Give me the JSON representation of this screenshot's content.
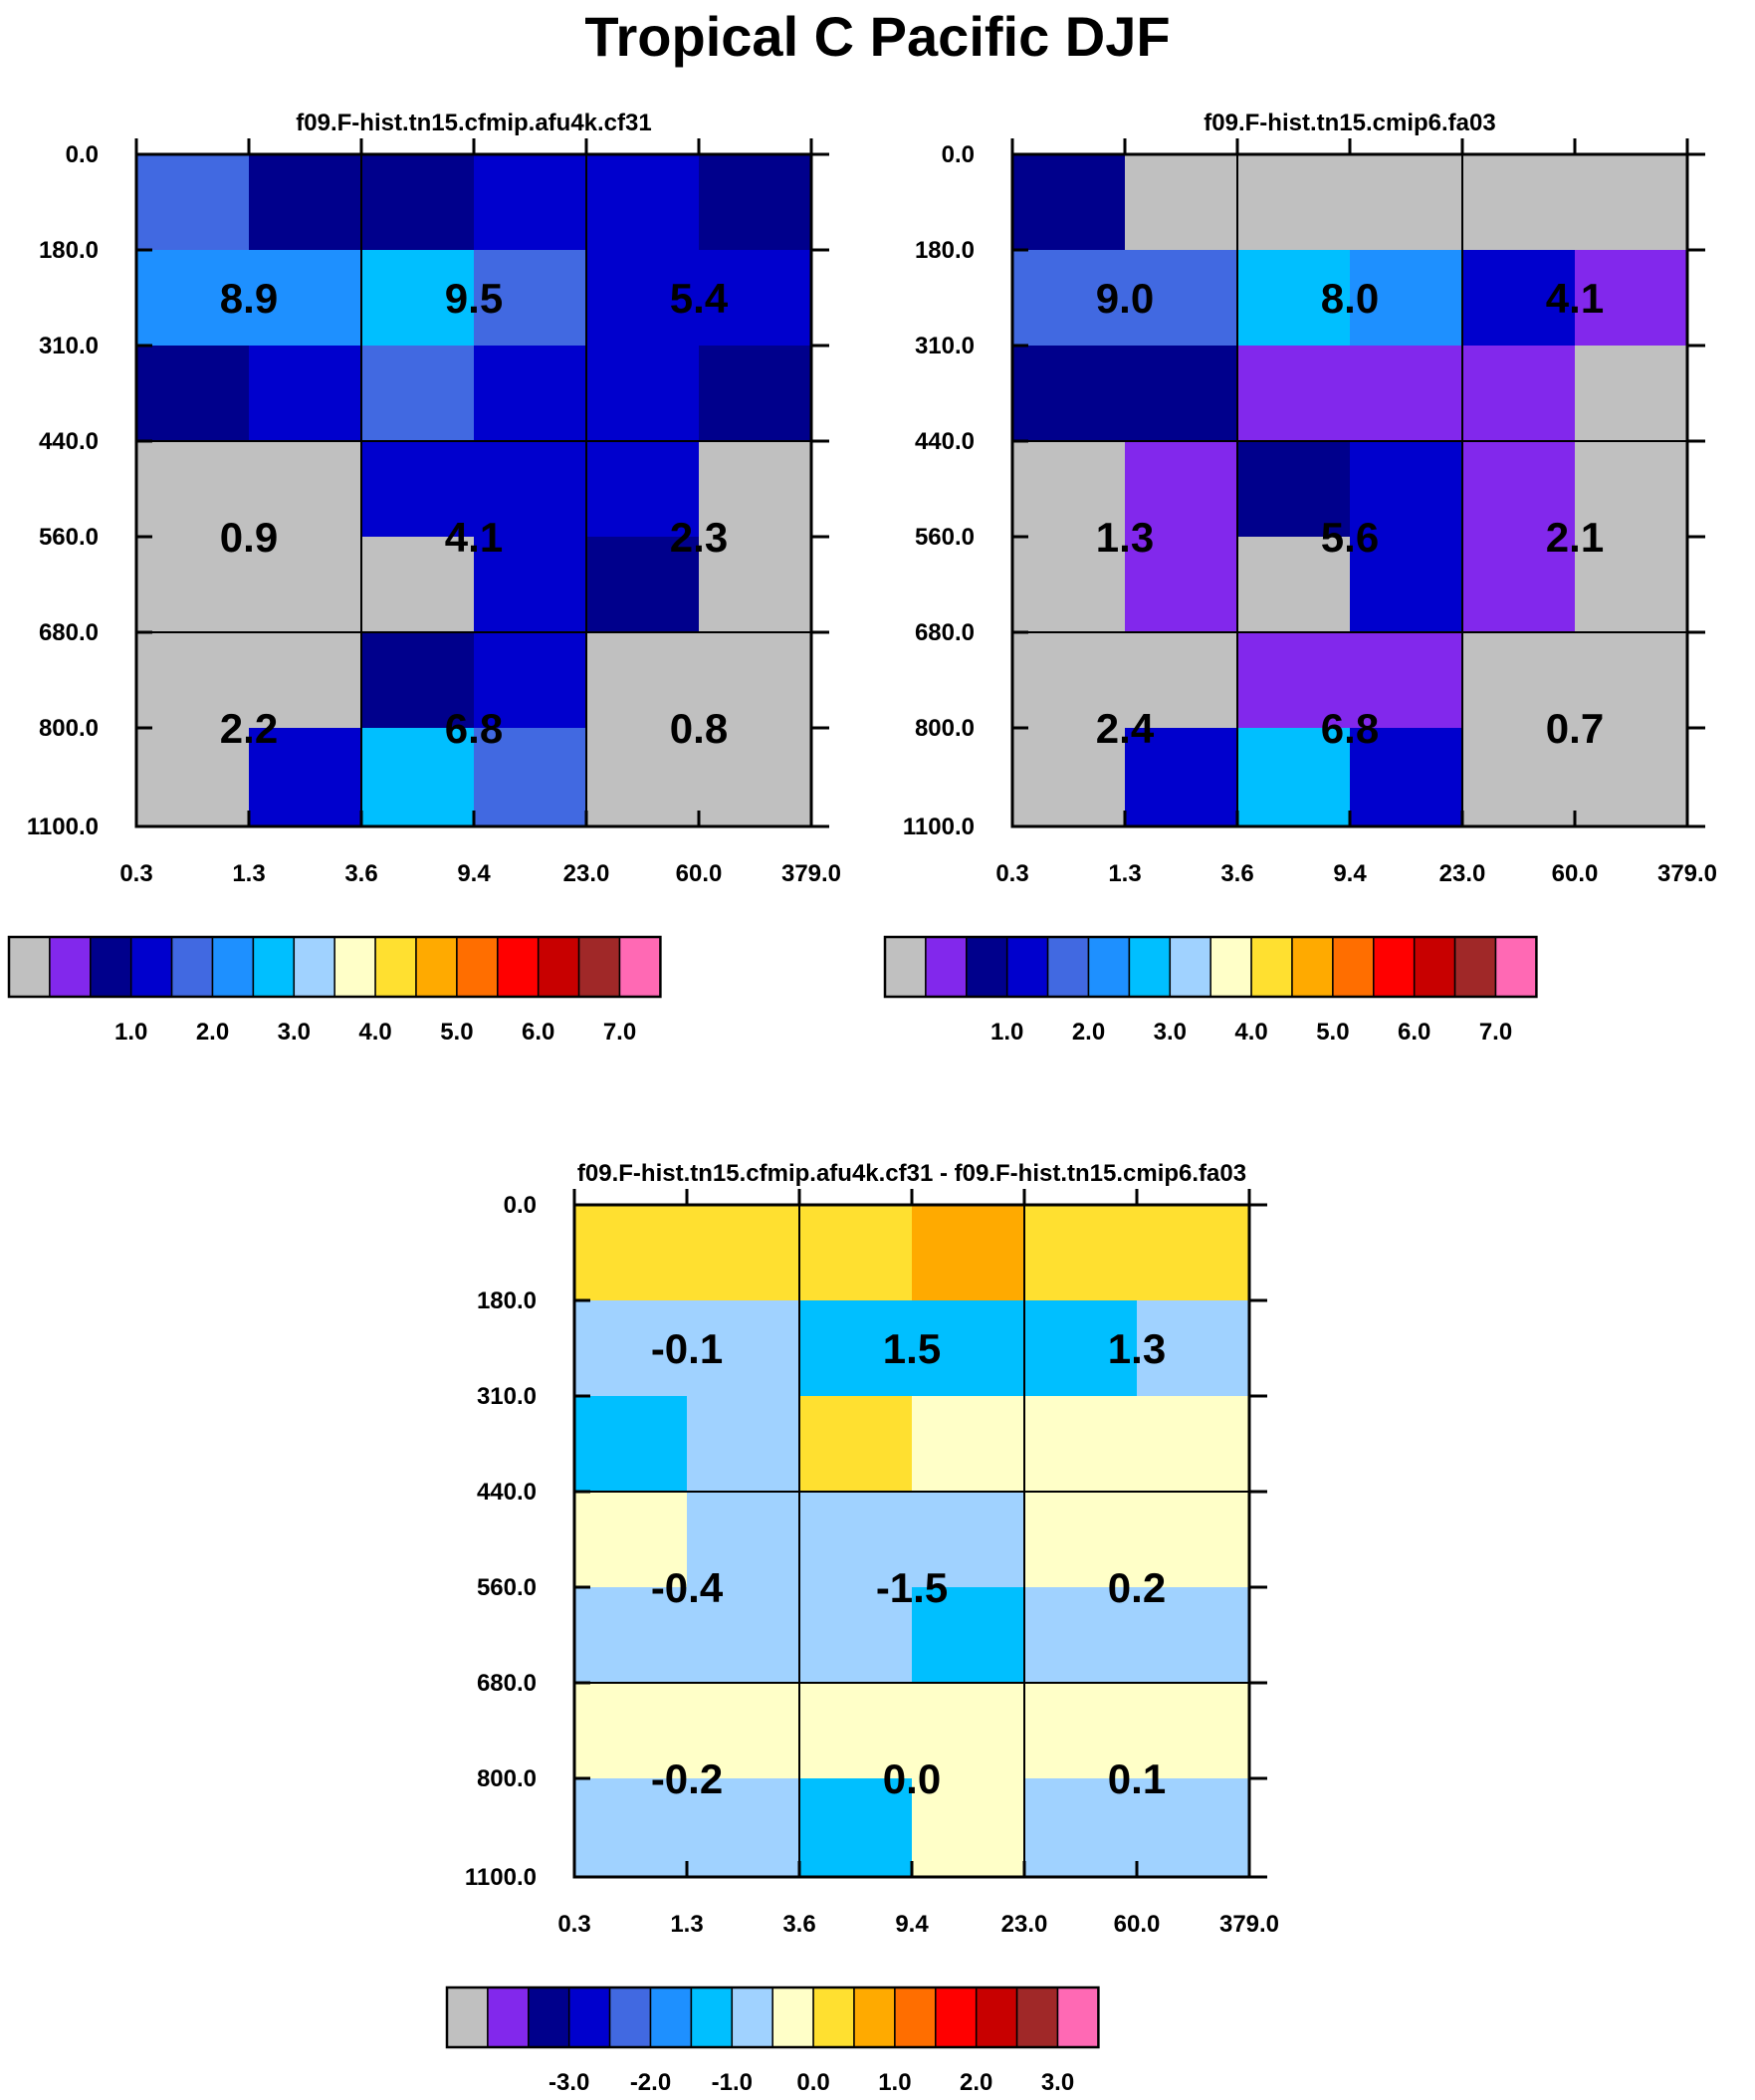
{
  "title": "Tropical C Pacific DJF",
  "chart_data": [
    {
      "type": "heatmap",
      "title": "f09.F-hist.tn15.cfmip.afu4k.cf31",
      "y_ticks": [
        "0.0",
        "180.0",
        "310.0",
        "440.0",
        "560.0",
        "680.0",
        "800.0",
        "1100.0"
      ],
      "x_ticks": [
        "0.3",
        "1.3",
        "3.6",
        "9.4",
        "23.0",
        "60.0",
        "379.0"
      ],
      "cells": [
        [
          4,
          2,
          2,
          3,
          3,
          2
        ],
        [
          5,
          5,
          6,
          4,
          3,
          3
        ],
        [
          2,
          3,
          4,
          3,
          3,
          2
        ],
        [
          0,
          0,
          3,
          3,
          3,
          0
        ],
        [
          0,
          0,
          0,
          3,
          2,
          0
        ],
        [
          0,
          0,
          2,
          3,
          0,
          0
        ],
        [
          0,
          3,
          6,
          4,
          0,
          0
        ]
      ],
      "block_values": [
        [
          "8.9",
          "9.5",
          "5.4"
        ],
        [
          "0.9",
          "4.1",
          "2.3"
        ],
        [
          "2.2",
          "6.8",
          "0.8"
        ]
      ],
      "colorbar": {
        "colors": [
          "#c0c0c0",
          "#8228ec",
          "#00008c",
          "#0000cd",
          "#4169e1",
          "#1e90ff",
          "#00bfff",
          "#a0d2ff",
          "#ffffc8",
          "#ffe030",
          "#ffaa00",
          "#ff6e00",
          "#ff0000",
          "#c80000",
          "#a02828",
          "#ff69b4"
        ],
        "labels": [
          "1.0",
          "2.0",
          "3.0",
          "4.0",
          "5.0",
          "6.0",
          "7.0"
        ]
      }
    },
    {
      "type": "heatmap",
      "title": "f09.F-hist.tn15.cmip6.fa03",
      "y_ticks": [
        "0.0",
        "180.0",
        "310.0",
        "440.0",
        "560.0",
        "680.0",
        "800.0",
        "1100.0"
      ],
      "x_ticks": [
        "0.3",
        "1.3",
        "3.6",
        "9.4",
        "23.0",
        "60.0",
        "379.0"
      ],
      "cells": [
        [
          2,
          0,
          0,
          0,
          0,
          0
        ],
        [
          4,
          4,
          6,
          5,
          3,
          1
        ],
        [
          2,
          2,
          1,
          1,
          1,
          0
        ],
        [
          0,
          1,
          2,
          3,
          1,
          0
        ],
        [
          0,
          1,
          0,
          3,
          1,
          0
        ],
        [
          0,
          0,
          1,
          1,
          0,
          0
        ],
        [
          0,
          3,
          6,
          3,
          0,
          0
        ]
      ],
      "block_values": [
        [
          "9.0",
          "8.0",
          "4.1"
        ],
        [
          "1.3",
          "5.6",
          "2.1"
        ],
        [
          "2.4",
          "6.8",
          "0.7"
        ]
      ],
      "colorbar": {
        "colors": [
          "#c0c0c0",
          "#8228ec",
          "#00008c",
          "#0000cd",
          "#4169e1",
          "#1e90ff",
          "#00bfff",
          "#a0d2ff",
          "#ffffc8",
          "#ffe030",
          "#ffaa00",
          "#ff6e00",
          "#ff0000",
          "#c80000",
          "#a02828",
          "#ff69b4"
        ],
        "labels": [
          "1.0",
          "2.0",
          "3.0",
          "4.0",
          "5.0",
          "6.0",
          "7.0"
        ]
      }
    },
    {
      "type": "heatmap",
      "title": "f09.F-hist.tn15.cfmip.afu4k.cf31 - f09.F-hist.tn15.cmip6.fa03",
      "y_ticks": [
        "0.0",
        "180.0",
        "310.0",
        "440.0",
        "560.0",
        "680.0",
        "800.0",
        "1100.0"
      ],
      "x_ticks": [
        "0.3",
        "1.3",
        "3.6",
        "9.4",
        "23.0",
        "60.0",
        "379.0"
      ],
      "cells": [
        [
          9,
          9,
          9,
          10,
          9,
          9
        ],
        [
          7,
          7,
          6,
          6,
          6,
          7
        ],
        [
          6,
          7,
          9,
          8,
          8,
          8
        ],
        [
          8,
          7,
          7,
          7,
          8,
          8
        ],
        [
          7,
          7,
          7,
          6,
          7,
          7
        ],
        [
          8,
          8,
          8,
          8,
          8,
          8
        ],
        [
          7,
          7,
          6,
          8,
          7,
          7
        ]
      ],
      "block_values": [
        [
          "-0.1",
          "1.5",
          "1.3"
        ],
        [
          "-0.4",
          "-1.5",
          "0.2"
        ],
        [
          "-0.2",
          "0.0",
          "0.1"
        ]
      ],
      "colorbar": {
        "colors": [
          "#c0c0c0",
          "#8228ec",
          "#00008c",
          "#0000cd",
          "#4169e1",
          "#1e90ff",
          "#00bfff",
          "#a0d2ff",
          "#ffffc8",
          "#ffe030",
          "#ffaa00",
          "#ff6e00",
          "#ff0000",
          "#c80000",
          "#a02828",
          "#ff69b4"
        ],
        "labels": [
          "-3.0",
          "-2.0",
          "-1.0",
          "0.0",
          "1.0",
          "2.0",
          "3.0"
        ]
      }
    }
  ]
}
